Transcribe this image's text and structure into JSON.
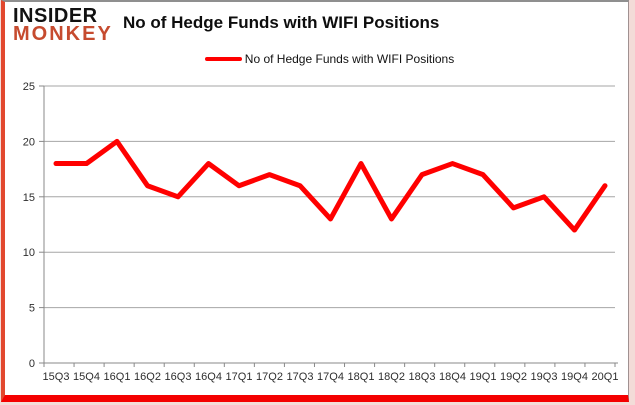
{
  "brand": {
    "line1": "INSIDER",
    "line2": "MONKEY",
    "insider_color": "#111111",
    "monkey_color": "#c64b2f"
  },
  "title": "No of Hedge Funds with WIFI Positions",
  "legend": {
    "label": "No of Hedge Funds with WIFI Positions"
  },
  "chart_data": {
    "type": "line",
    "title": "No of Hedge Funds with WIFI Positions",
    "categories": [
      "15Q3",
      "15Q4",
      "16Q1",
      "16Q2",
      "16Q3",
      "16Q4",
      "17Q1",
      "17Q2",
      "17Q3",
      "17Q4",
      "18Q1",
      "18Q2",
      "18Q3",
      "18Q4",
      "19Q1",
      "19Q2",
      "19Q3",
      "19Q4",
      "20Q1"
    ],
    "series": [
      {
        "name": "No of Hedge Funds with WIFI Positions",
        "values": [
          18,
          18,
          20,
          16,
          15,
          18,
          16,
          17,
          16,
          13,
          18,
          13,
          17,
          18,
          17,
          14,
          15,
          12,
          16
        ]
      }
    ],
    "xlabel": "",
    "ylabel": "",
    "ylim": [
      0,
      25
    ],
    "yticks": [
      0,
      5,
      10,
      15,
      20,
      25
    ],
    "grid": true,
    "legend_position": "top-center",
    "line_color": "#ff0000",
    "gridline_color": "#a6a6a6",
    "axis_color": "#898989",
    "tick_label_color": "#2e2e2e"
  }
}
